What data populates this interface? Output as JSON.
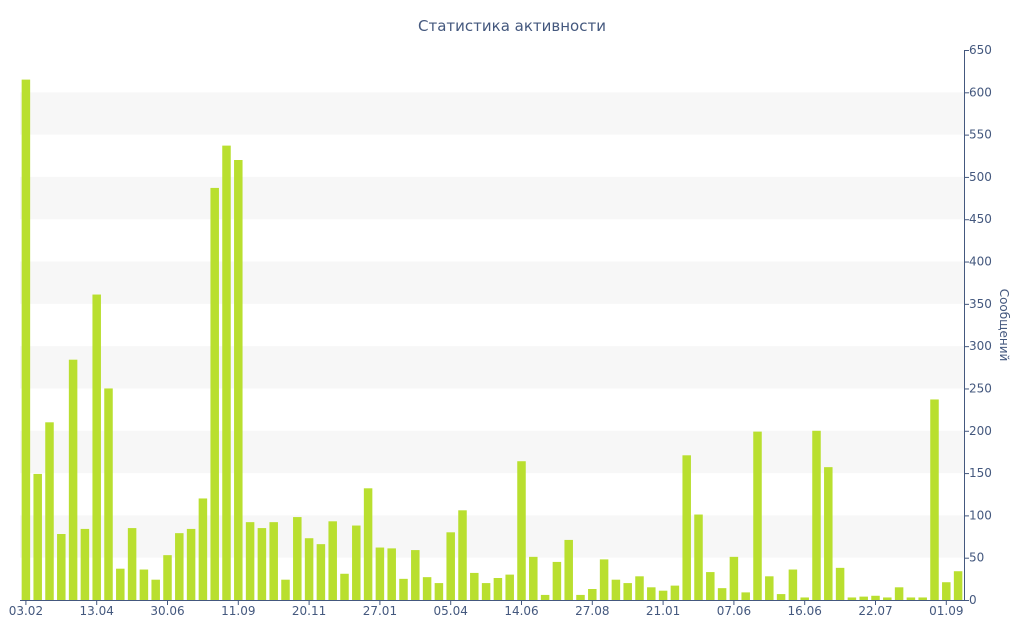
{
  "chart_data": {
    "type": "bar",
    "title": "Статистика активности",
    "ylabel": "Сообщений",
    "xlabel": "",
    "ylim": [
      0,
      650
    ],
    "y_axis_position": "right",
    "y_ticks": [
      0,
      50,
      100,
      150,
      200,
      250,
      300,
      350,
      400,
      450,
      500,
      550,
      600,
      650
    ],
    "x_tick_labels": [
      "03.02",
      "13.04",
      "30.06",
      "11.09",
      "20.11",
      "27.01",
      "05.04",
      "14.06",
      "27.08",
      "21.01",
      "07.06",
      "16.06",
      "22.07",
      "01.09"
    ],
    "x_tick_positions": [
      0,
      6,
      12,
      18,
      24,
      30,
      36,
      42,
      48,
      54,
      60,
      66,
      72,
      78
    ],
    "grid": "horizontal alternating bands",
    "legend": "none",
    "colors": {
      "bar": "#b9df2f",
      "band": "#f7f7f7",
      "text": "#44587e",
      "axis": "#44587e"
    },
    "values": [
      615,
      149,
      210,
      78,
      284,
      84,
      361,
      250,
      37,
      85,
      36,
      24,
      53,
      79,
      84,
      120,
      487,
      537,
      520,
      92,
      85,
      92,
      24,
      98,
      73,
      66,
      93,
      31,
      88,
      132,
      62,
      61,
      25,
      59,
      27,
      20,
      80,
      106,
      32,
      20,
      26,
      30,
      164,
      51,
      6,
      45,
      71,
      6,
      13,
      48,
      24,
      20,
      28,
      15,
      11,
      17,
      171,
      101,
      33,
      14,
      51,
      9,
      199,
      28,
      7,
      36,
      3,
      200,
      157,
      38,
      3,
      4,
      5,
      3,
      15,
      3,
      3,
      237,
      21,
      34
    ]
  }
}
